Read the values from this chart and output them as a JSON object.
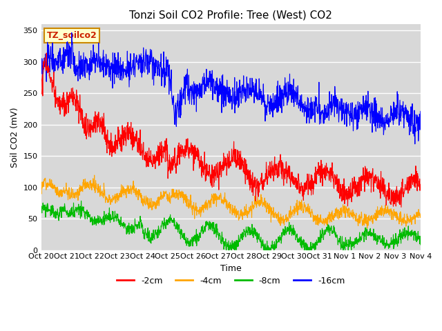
{
  "title": "Tonzi Soil CO2 Profile: Tree (West) CO2",
  "ylabel": "Soil CO2 (mV)",
  "xlabel": "Time",
  "watermark": "TZ_soilco2",
  "ylim": [
    0,
    360
  ],
  "yticks": [
    0,
    50,
    100,
    150,
    200,
    250,
    300,
    350
  ],
  "colors": {
    "-2cm": "#ff0000",
    "-4cm": "#ffa500",
    "-8cm": "#00bb00",
    "-16cm": "#0000ff"
  },
  "legend_labels": [
    "-2cm",
    "-4cm",
    "-8cm",
    "-16cm"
  ],
  "n_points": 1440,
  "axes_bg": "#d8d8d8",
  "title_fontsize": 11,
  "label_fontsize": 9,
  "tick_fontsize": 8,
  "xtick_labels": [
    "Oct 20",
    "Oct 21",
    "Oct 22",
    "Oct 23",
    "Oct 24",
    "Oct 25",
    "Oct 26",
    "Oct 27",
    "Oct 28",
    "Oct 29",
    "Oct 30",
    "Oct 31",
    "Nov 1",
    "Nov 2",
    "Nov 3",
    "Nov 4"
  ],
  "figsize": [
    6.4,
    4.8
  ],
  "dpi": 100
}
